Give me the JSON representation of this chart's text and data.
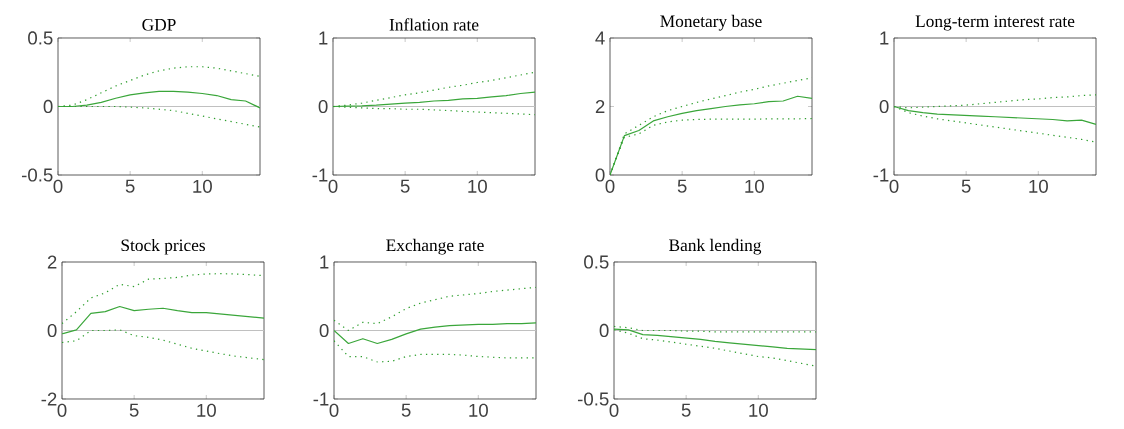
{
  "chart_data": [
    {
      "type": "line",
      "title": "GDP",
      "x": [
        0,
        1,
        2,
        3,
        4,
        5,
        6,
        7,
        8,
        9,
        10,
        11,
        12,
        13,
        14
      ],
      "xlim": [
        0,
        14
      ],
      "xticks": [
        0,
        5,
        10
      ],
      "ylim": [
        -0.5,
        0.5
      ],
      "yticks": [
        -0.5,
        0,
        0.5
      ],
      "ref_lines": [
        {
          "axis": "y",
          "value": 0,
          "color": "#c0c0c0"
        }
      ],
      "series": [
        {
          "color": "#3aa63a",
          "line_style": "solid",
          "values": [
            0,
            0,
            0.01,
            0.03,
            0.06,
            0.085,
            0.1,
            0.11,
            0.11,
            0.105,
            0.095,
            0.08,
            0.05,
            0.04,
            -0.01
          ]
        },
        {
          "color": "#2e9e2e",
          "line_style": "dotted",
          "values": [
            0,
            0.01,
            0.05,
            0.1,
            0.15,
            0.19,
            0.23,
            0.26,
            0.28,
            0.29,
            0.29,
            0.28,
            0.26,
            0.24,
            0.22
          ]
        },
        {
          "color": "#2e9e2e",
          "line_style": "dotted",
          "values": [
            0,
            0,
            0,
            0,
            0,
            -0.005,
            -0.01,
            -0.02,
            -0.03,
            -0.05,
            -0.07,
            -0.09,
            -0.11,
            -0.13,
            -0.15
          ]
        }
      ]
    },
    {
      "type": "line",
      "title": "Inflation rate",
      "x": [
        0,
        1,
        2,
        3,
        4,
        5,
        6,
        7,
        8,
        9,
        10,
        11,
        12,
        13,
        14
      ],
      "xlim": [
        0,
        14
      ],
      "xticks": [
        0,
        5,
        10
      ],
      "ylim": [
        -1,
        1
      ],
      "yticks": [
        -1,
        0,
        1
      ],
      "ref_lines": [
        {
          "axis": "y",
          "value": 0,
          "color": "#c0c0c0"
        }
      ],
      "series": [
        {
          "color": "#3aa63a",
          "line_style": "solid",
          "values": [
            0,
            0.005,
            0.01,
            0.02,
            0.035,
            0.05,
            0.06,
            0.08,
            0.09,
            0.11,
            0.12,
            0.14,
            0.16,
            0.19,
            0.21
          ]
        },
        {
          "color": "#2e9e2e",
          "line_style": "dotted",
          "values": [
            0,
            0.02,
            0.05,
            0.09,
            0.13,
            0.17,
            0.2,
            0.24,
            0.28,
            0.31,
            0.35,
            0.38,
            0.42,
            0.46,
            0.5
          ]
        },
        {
          "color": "#2e9e2e",
          "line_style": "dotted",
          "values": [
            0,
            -0.01,
            -0.02,
            -0.03,
            -0.03,
            -0.04,
            -0.04,
            -0.05,
            -0.06,
            -0.07,
            -0.08,
            -0.09,
            -0.1,
            -0.11,
            -0.12
          ]
        }
      ]
    },
    {
      "type": "line",
      "title": "Monetary base",
      "x": [
        0,
        1,
        2,
        3,
        4,
        5,
        6,
        7,
        8,
        9,
        10,
        11,
        12,
        13,
        14
      ],
      "xlim": [
        0,
        14
      ],
      "xticks": [
        0,
        5,
        10
      ],
      "ylim": [
        0,
        4
      ],
      "yticks": [
        0,
        2,
        4
      ],
      "series": [
        {
          "color": "#3aa63a",
          "line_style": "solid",
          "values": [
            0,
            1.15,
            1.3,
            1.58,
            1.7,
            1.8,
            1.88,
            1.94,
            2.0,
            2.05,
            2.08,
            2.14,
            2.16,
            2.3,
            2.24
          ]
        },
        {
          "color": "#2e9e2e",
          "line_style": "dotted",
          "values": [
            0,
            1.2,
            1.45,
            1.7,
            1.88,
            2.0,
            2.12,
            2.22,
            2.32,
            2.42,
            2.5,
            2.6,
            2.68,
            2.76,
            2.84
          ]
        },
        {
          "color": "#2e9e2e",
          "line_style": "dotted",
          "values": [
            0,
            1.1,
            1.2,
            1.45,
            1.55,
            1.6,
            1.62,
            1.63,
            1.63,
            1.63,
            1.63,
            1.64,
            1.64,
            1.64,
            1.65
          ]
        }
      ]
    },
    {
      "type": "line",
      "title": "Long-term interest rate",
      "x": [
        0,
        1,
        2,
        3,
        4,
        5,
        6,
        7,
        8,
        9,
        10,
        11,
        12,
        13,
        14
      ],
      "xlim": [
        0,
        14
      ],
      "xticks": [
        0,
        5,
        10
      ],
      "ylim": [
        -1,
        1
      ],
      "yticks": [
        -1,
        0,
        1
      ],
      "ref_lines": [
        {
          "axis": "y",
          "value": 0,
          "color": "#c0c0c0"
        }
      ],
      "series": [
        {
          "color": "#3aa63a",
          "line_style": "solid",
          "values": [
            0,
            -0.06,
            -0.09,
            -0.11,
            -0.12,
            -0.13,
            -0.14,
            -0.15,
            -0.16,
            -0.17,
            -0.18,
            -0.19,
            -0.21,
            -0.2,
            -0.26
          ]
        },
        {
          "color": "#2e9e2e",
          "line_style": "dotted",
          "values": [
            0,
            -0.02,
            -0.01,
            0,
            0.01,
            0.02,
            0.04,
            0.06,
            0.08,
            0.1,
            0.11,
            0.13,
            0.14,
            0.16,
            0.17
          ]
        },
        {
          "color": "#2e9e2e",
          "line_style": "dotted",
          "values": [
            0,
            -0.09,
            -0.14,
            -0.18,
            -0.21,
            -0.24,
            -0.27,
            -0.3,
            -0.33,
            -0.36,
            -0.39,
            -0.42,
            -0.45,
            -0.48,
            -0.52
          ]
        }
      ]
    },
    {
      "type": "line",
      "title": "Stock prices",
      "x": [
        0,
        1,
        2,
        3,
        4,
        5,
        6,
        7,
        8,
        9,
        10,
        11,
        12,
        13,
        14
      ],
      "xlim": [
        0,
        14
      ],
      "xticks": [
        0,
        5,
        10
      ],
      "ylim": [
        -2,
        2
      ],
      "yticks": [
        -2,
        0,
        2
      ],
      "ref_lines": [
        {
          "axis": "y",
          "value": 0,
          "color": "#c0c0c0"
        }
      ],
      "series": [
        {
          "color": "#3aa63a",
          "line_style": "solid",
          "values": [
            -0.1,
            0.02,
            0.5,
            0.55,
            0.7,
            0.58,
            0.62,
            0.65,
            0.58,
            0.52,
            0.52,
            0.48,
            0.44,
            0.4,
            0.36
          ]
        },
        {
          "color": "#2e9e2e",
          "line_style": "dotted",
          "values": [
            0.2,
            0.55,
            0.95,
            1.1,
            1.35,
            1.28,
            1.5,
            1.52,
            1.55,
            1.62,
            1.65,
            1.66,
            1.65,
            1.63,
            1.6
          ]
        },
        {
          "color": "#2e9e2e",
          "line_style": "dotted",
          "values": [
            -0.35,
            -0.3,
            0,
            0,
            0.02,
            -0.15,
            -0.2,
            -0.28,
            -0.4,
            -0.52,
            -0.6,
            -0.68,
            -0.75,
            -0.8,
            -0.85
          ]
        }
      ]
    },
    {
      "type": "line",
      "title": "Exchange rate",
      "x": [
        0,
        1,
        2,
        3,
        4,
        5,
        6,
        7,
        8,
        9,
        10,
        11,
        12,
        13,
        14
      ],
      "xlim": [
        0,
        14
      ],
      "xticks": [
        0,
        5,
        10
      ],
      "ylim": [
        -1,
        1
      ],
      "yticks": [
        -1,
        0,
        1
      ],
      "ref_lines": [
        {
          "axis": "y",
          "value": 0,
          "color": "#c0c0c0"
        }
      ],
      "series": [
        {
          "color": "#3aa63a",
          "line_style": "solid",
          "values": [
            0,
            -0.19,
            -0.12,
            -0.19,
            -0.13,
            -0.05,
            0.02,
            0.05,
            0.07,
            0.08,
            0.09,
            0.09,
            0.1,
            0.1,
            0.11
          ]
        },
        {
          "color": "#2e9e2e",
          "line_style": "dotted",
          "values": [
            0.15,
            0,
            0.12,
            0.1,
            0.2,
            0.32,
            0.4,
            0.45,
            0.5,
            0.52,
            0.54,
            0.57,
            0.59,
            0.61,
            0.63
          ]
        },
        {
          "color": "#2e9e2e",
          "line_style": "dotted",
          "values": [
            -0.15,
            -0.38,
            -0.38,
            -0.46,
            -0.45,
            -0.38,
            -0.35,
            -0.35,
            -0.35,
            -0.36,
            -0.38,
            -0.39,
            -0.4,
            -0.4,
            -0.4
          ]
        }
      ]
    },
    {
      "type": "line",
      "title": "Bank lending",
      "x": [
        0,
        1,
        2,
        3,
        4,
        5,
        6,
        7,
        8,
        9,
        10,
        11,
        12,
        13,
        14
      ],
      "xlim": [
        0,
        14
      ],
      "xticks": [
        0,
        5,
        10
      ],
      "ylim": [
        -0.5,
        0.5
      ],
      "yticks": [
        -0.5,
        0,
        0.5
      ],
      "ref_lines": [
        {
          "axis": "y",
          "value": 0,
          "color": "#c0c0c0"
        }
      ],
      "series": [
        {
          "color": "#3aa63a",
          "line_style": "solid",
          "values": [
            0.01,
            0.005,
            -0.03,
            -0.035,
            -0.045,
            -0.055,
            -0.065,
            -0.08,
            -0.09,
            -0.1,
            -0.11,
            -0.12,
            -0.13,
            -0.135,
            -0.14
          ]
        },
        {
          "color": "#2e9e2e",
          "line_style": "dotted",
          "values": [
            0.03,
            0.02,
            0,
            0,
            0,
            -0.005,
            -0.005,
            -0.01,
            -0.01,
            -0.01,
            -0.01,
            -0.01,
            -0.01,
            -0.01,
            -0.01
          ]
        },
        {
          "color": "#2e9e2e",
          "line_style": "dotted",
          "values": [
            0.005,
            -0.02,
            -0.06,
            -0.07,
            -0.085,
            -0.1,
            -0.115,
            -0.13,
            -0.15,
            -0.17,
            -0.19,
            -0.2,
            -0.22,
            -0.24,
            -0.26
          ]
        }
      ]
    }
  ]
}
